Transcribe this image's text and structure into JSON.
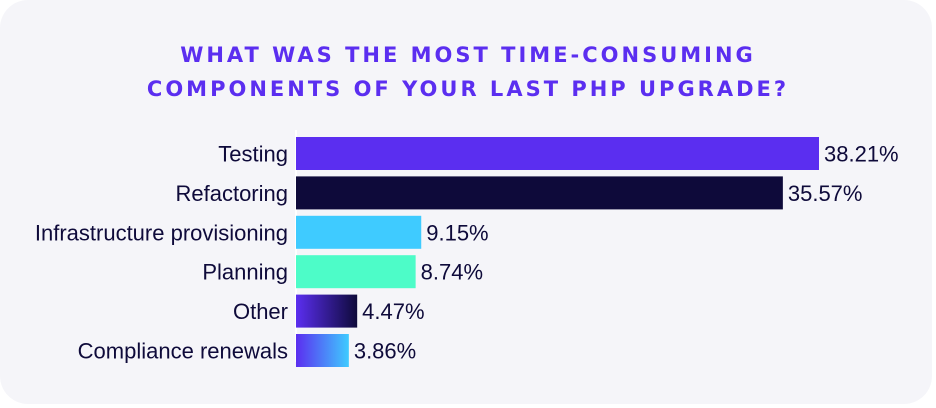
{
  "title_line1": "WHAT WAS THE MOST TIME-CONSUMING",
  "title_line2": "COMPONENTS OF YOUR LAST PHP UPGRADE?",
  "chart_data": {
    "type": "bar",
    "orientation": "horizontal",
    "categories": [
      "Testing",
      "Refactoring",
      "Infrastructure provisioning",
      "Planning",
      "Other",
      "Compliance renewals"
    ],
    "values": [
      38.21,
      35.57,
      9.15,
      8.74,
      4.47,
      3.86
    ],
    "value_labels": [
      "38.21%",
      "35.57%",
      "9.15%",
      "8.74%",
      "4.47%",
      "3.86%"
    ],
    "bar_colors": [
      "#5b2ef0",
      "#0e0a3a",
      "#3fcbff",
      "#4dfcc8",
      "gradient-navy-violet",
      "gradient-violet-blue"
    ],
    "xlim": [
      0,
      38.21
    ],
    "grid": false,
    "legend": "none"
  }
}
